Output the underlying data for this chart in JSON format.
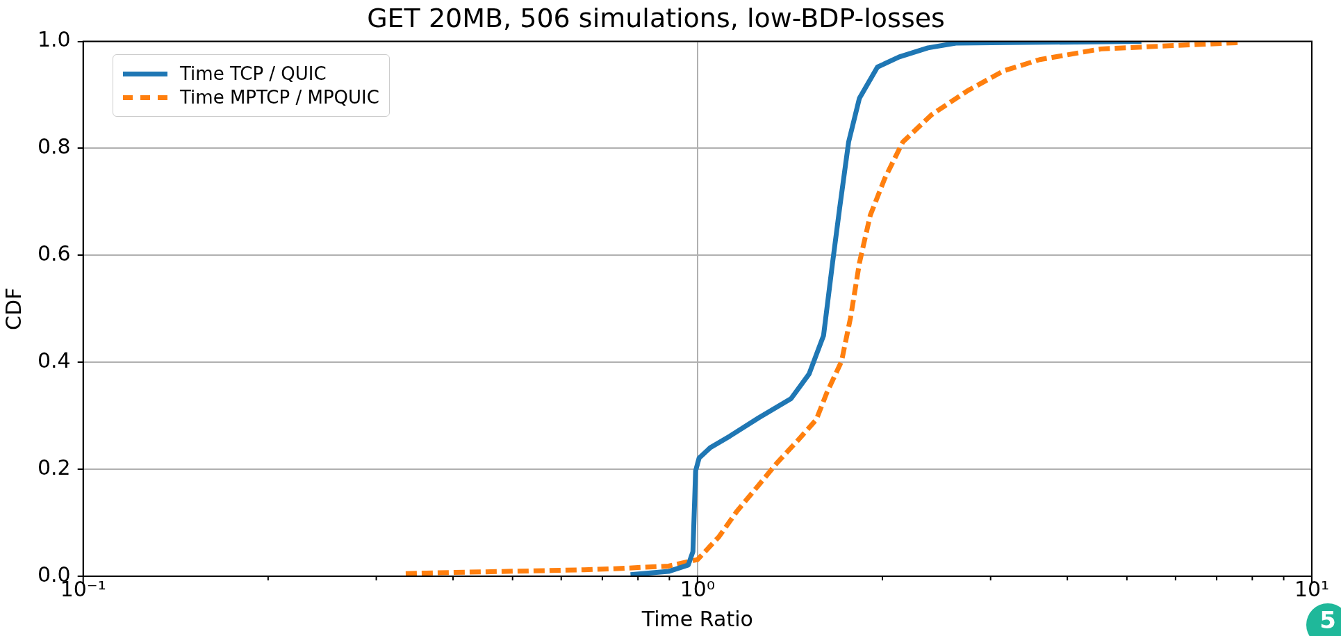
{
  "chart_data": {
    "type": "line",
    "title": "GET 20MB, 506 simulations, low-BDP-losses",
    "xlabel": "Time Ratio",
    "ylabel": "CDF",
    "log": "x",
    "xlim": [
      0.1,
      10
    ],
    "ylim": [
      0,
      1
    ],
    "xticks": [
      {
        "value": 0.1,
        "label": "10⁻¹"
      },
      {
        "value": 0.2,
        "label": null
      },
      {
        "value": 0.3,
        "label": null
      },
      {
        "value": 0.4,
        "label": null
      },
      {
        "value": 0.5,
        "label": null
      },
      {
        "value": 0.6,
        "label": null
      },
      {
        "value": 0.7,
        "label": null
      },
      {
        "value": 0.8,
        "label": null
      },
      {
        "value": 0.9,
        "label": null
      },
      {
        "value": 1,
        "label": "10⁰"
      },
      {
        "value": 2,
        "label": null
      },
      {
        "value": 3,
        "label": null
      },
      {
        "value": 4,
        "label": null
      },
      {
        "value": 5,
        "label": null
      },
      {
        "value": 6,
        "label": null
      },
      {
        "value": 7,
        "label": null
      },
      {
        "value": 8,
        "label": null
      },
      {
        "value": 9,
        "label": null
      },
      {
        "value": 10,
        "label": "10¹"
      }
    ],
    "yticks": [
      {
        "value": 0,
        "label": "0.0"
      },
      {
        "value": 0.2,
        "label": "0.2"
      },
      {
        "value": 0.4,
        "label": "0.4"
      },
      {
        "value": 0.6,
        "label": "0.6"
      },
      {
        "value": 0.8,
        "label": "0.8"
      },
      {
        "value": 1,
        "label": "1.0"
      }
    ],
    "grid": true,
    "legend": "top left",
    "marker": "none",
    "series": [
      {
        "name": "Time TCP / QUIC",
        "color": "#1f77b4",
        "line_style": "solid",
        "x": [
          0.778,
          0.897,
          0.966,
          0.983,
          0.993,
          1.006,
          1.048,
          1.129,
          1.257,
          1.42,
          1.519,
          1.604,
          1.659,
          1.704,
          1.762,
          1.835,
          1.963,
          2.13,
          2.372,
          2.644,
          5.28
        ],
        "values": [
          0.003,
          0.009,
          0.021,
          0.046,
          0.197,
          0.221,
          0.24,
          0.262,
          0.296,
          0.332,
          0.378,
          0.45,
          0.586,
          0.689,
          0.812,
          0.894,
          0.952,
          0.971,
          0.988,
          0.997,
          1.0
        ]
      },
      {
        "name": "Time MPTCP / MPQUIC",
        "color": "#ff7f0e",
        "line_style": "dashed",
        "x": [
          0.335,
          0.362,
          0.654,
          0.732,
          0.897,
          1.0,
          1.084,
          1.16,
          1.257,
          1.345,
          1.459,
          1.561,
          1.625,
          1.716,
          1.775,
          1.835,
          1.911,
          2.018,
          2.159,
          2.405,
          2.754,
          3.151,
          3.606,
          4.54,
          7.66
        ],
        "values": [
          0.005,
          0.006,
          0.012,
          0.014,
          0.019,
          0.031,
          0.074,
          0.122,
          0.17,
          0.211,
          0.255,
          0.293,
          0.344,
          0.402,
          0.484,
          0.586,
          0.675,
          0.744,
          0.812,
          0.863,
          0.908,
          0.945,
          0.966,
          0.986,
          0.998
        ]
      }
    ],
    "annotations": [
      "5"
    ]
  }
}
